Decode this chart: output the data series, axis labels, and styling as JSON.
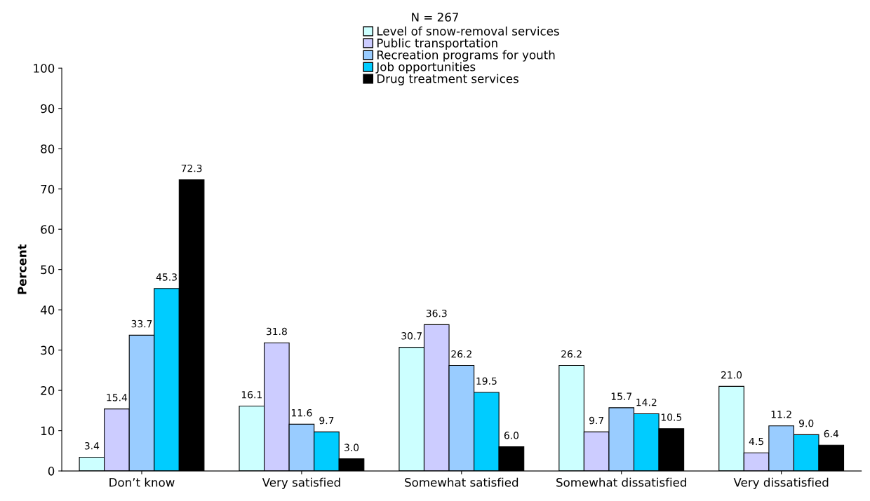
{
  "chart_data": {
    "type": "bar",
    "title": "N = 267",
    "ylabel": "Percent",
    "categories": [
      "Don’t know",
      "Very satisfied",
      "Somewhat satisfied",
      "Somewhat dissatisfied",
      "Very dissatisfied"
    ],
    "series": [
      {
        "name": "Level of snow-removal services",
        "color": "#ccffff",
        "values": [
          3.4,
          16.1,
          30.7,
          26.2,
          21.0
        ]
      },
      {
        "name": "Public transportation",
        "color": "#ccccff",
        "values": [
          15.4,
          31.8,
          36.3,
          9.7,
          4.5
        ]
      },
      {
        "name": "Recreation programs for youth",
        "color": "#99ccff",
        "values": [
          33.7,
          11.6,
          26.2,
          15.7,
          11.2
        ]
      },
      {
        "name": "Job opportunities",
        "color": "#00ccff",
        "values": [
          45.3,
          9.7,
          19.5,
          14.2,
          9.0
        ]
      },
      {
        "name": "Drug treatment services",
        "color": "#000000",
        "values": [
          72.3,
          3.0,
          6.0,
          10.5,
          6.4
        ]
      }
    ],
    "value_labels": [
      [
        "3.4",
        "16.1",
        "30.7",
        "26.2",
        "21.0"
      ],
      [
        "15.4",
        "31.8",
        "36.3",
        "9.7",
        "4.5"
      ],
      [
        "33.7",
        "11.6",
        "26.2",
        "15.7",
        "11.2"
      ],
      [
        "45.3",
        "9.7",
        "19.5",
        "14.2",
        "9.0"
      ],
      [
        "72.3",
        "3.0",
        "6.0",
        "10.5",
        "6.4"
      ]
    ],
    "ylim": [
      0,
      100
    ],
    "yticks": [
      0,
      10,
      20,
      30,
      40,
      50,
      60,
      70,
      80,
      90,
      100
    ],
    "grid": false,
    "legend": "top"
  }
}
